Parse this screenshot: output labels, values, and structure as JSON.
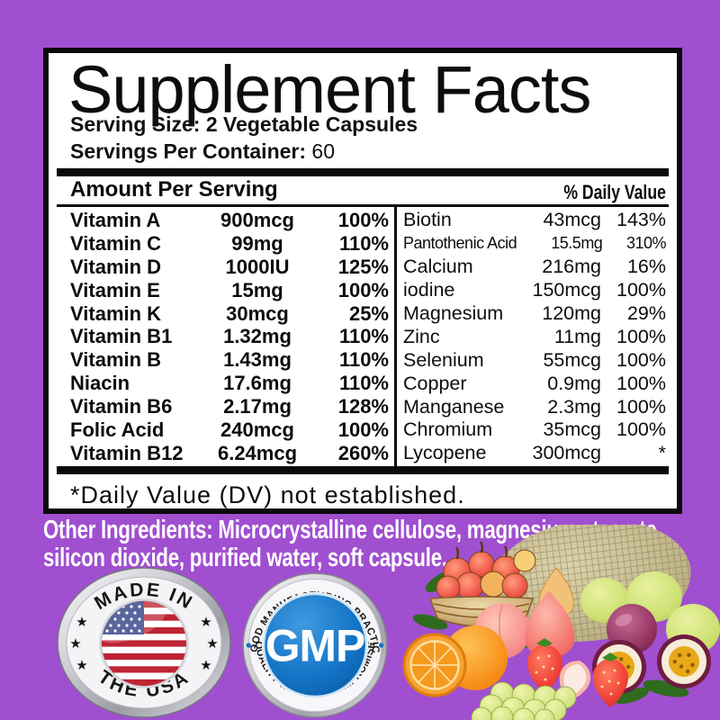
{
  "colors": {
    "background_purple": "#a04fd0",
    "panel_background": "#ffffff",
    "panel_border": "#0a0a0a",
    "label_text": "#0d0d0d",
    "ingredients_text": "#ffffff",
    "gmp_blue": "#1272c4",
    "badge_silver": "#d6d6da",
    "flag_red": "#bf2433",
    "flag_blue": "#2b3a82"
  },
  "panel": {
    "title": "Supplement Facts",
    "serving_size_line": "Serving Size: 2 Vegetable Capsules",
    "servings_label": "Servings Per Container:",
    "servings_value": "60",
    "amount_header": "Amount Per Serving",
    "dv_header": "% Daily Value",
    "left_rows": [
      {
        "name": "Vitamin A",
        "amount": "900mcg",
        "dv": "100%"
      },
      {
        "name": "Vitamin C",
        "amount": "99mg",
        "dv": "110%"
      },
      {
        "name": "Vitamin D",
        "amount": "1000IU",
        "dv": "125%"
      },
      {
        "name": "Vitamin E",
        "amount": "15mg",
        "dv": "100%"
      },
      {
        "name": "Vitamin K",
        "amount": "30mcg",
        "dv": "25%"
      },
      {
        "name": "Vitamin B1",
        "amount": "1.32mg",
        "dv": "110%"
      },
      {
        "name": "Vitamin B",
        "amount": "1.43mg",
        "dv": "110%"
      },
      {
        "name": "Niacin",
        "amount": "17.6mg",
        "dv": "110%"
      },
      {
        "name": "Vitamin B6",
        "amount": "2.17mg",
        "dv": "128%"
      },
      {
        "name": "Folic Acid",
        "amount": "240mcg",
        "dv": "100%"
      },
      {
        "name": "Vitamin B12",
        "amount": "6.24mcg",
        "dv": "260%"
      }
    ],
    "right_rows": [
      {
        "name": "Biotin",
        "amount": "43mcg",
        "dv": "143%"
      },
      {
        "name": "Pantothenic Acid",
        "amount": "15.5mg",
        "dv": "310%"
      },
      {
        "name": "Calcium",
        "amount": "216mg",
        "dv": "16%"
      },
      {
        "name": "iodine",
        "amount": "150mcg",
        "dv": "100%"
      },
      {
        "name": "Magnesium",
        "amount": "120mg",
        "dv": "29%"
      },
      {
        "name": "Zinc",
        "amount": "11mg",
        "dv": "100%"
      },
      {
        "name": "Selenium",
        "amount": "55mcg",
        "dv": "100%"
      },
      {
        "name": "Copper",
        "amount": "0.9mg",
        "dv": "100%"
      },
      {
        "name": "Manganese",
        "amount": "2.3mg",
        "dv": "100%"
      },
      {
        "name": "Chromium",
        "amount": "35mcg",
        "dv": "100%"
      },
      {
        "name": "Lycopene",
        "amount": "300mcg",
        "dv": "*"
      }
    ],
    "footnote": "*Daily Value (DV) not established."
  },
  "other_ingredients": {
    "lines": [
      "Other Ingredients: Microcrystalline cellulose, magnesium stearate,",
      "silicon dioxide, purified water, soft capsule."
    ]
  },
  "badges": {
    "usa": {
      "top_text": "MADE IN",
      "bottom_text": "THE USA",
      "star": "★"
    },
    "gmp": {
      "top_text": "GOOD MANUFACTURING PRACTICE",
      "center_text": "GMP",
      "bottom_text": "QUALITY WITHOUT COMPROMISE"
    }
  },
  "illustration": {
    "fruit_icons": [
      "cantaloupe-melon",
      "apple-basket",
      "pears",
      "peach",
      "pink-pear",
      "green-apples",
      "passion-fruit-whole",
      "passion-fruit-halves",
      "strawberries",
      "orange-whole",
      "orange-half",
      "green-grapes",
      "leaves"
    ]
  }
}
